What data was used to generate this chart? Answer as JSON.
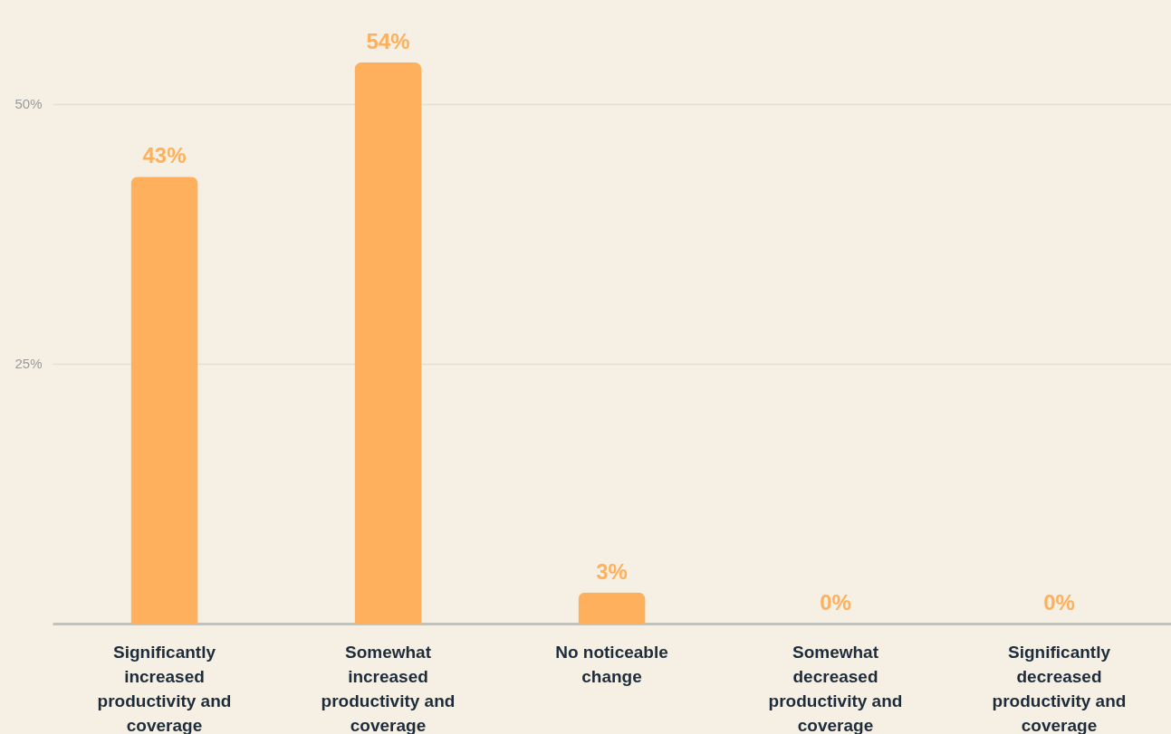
{
  "chart_data": {
    "type": "bar",
    "categories": [
      "Significantly increased productivity and coverage",
      "Somewhat increased productivity and coverage",
      "No noticeable change",
      "Somewhat decreased productivity and coverage",
      "Significantly decreased productivity and coverage"
    ],
    "values": [
      43,
      54,
      3,
      0,
      0
    ],
    "value_labels": [
      "43%",
      "54%",
      "3%",
      "0%",
      "0%"
    ],
    "color": "#ffb05c",
    "ylim": [
      0,
      60
    ],
    "yticks": [
      {
        "value": 25,
        "label": "25%"
      },
      {
        "value": 50,
        "label": "50%"
      }
    ],
    "grid": "y"
  }
}
